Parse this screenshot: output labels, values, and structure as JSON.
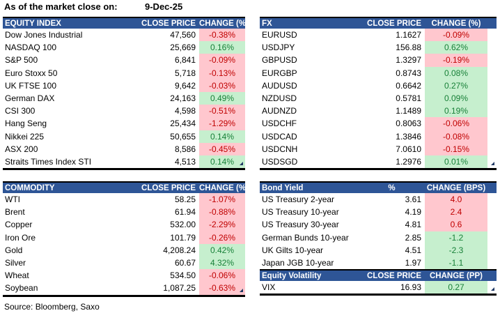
{
  "page": {
    "as_of_label": "As of the market close on:",
    "date": "9-Dec-25",
    "source": "Source: Bloomberg, Saxo"
  },
  "colors": {
    "header_bg": "#2E5596",
    "header_text": "#FFFFFF",
    "negative_bg": "#FFC7CE",
    "negative_text": "#C00000",
    "positive_bg": "#C6EFCE",
    "positive_text": "#188038",
    "corner_marker": "#1F3864"
  },
  "tables": {
    "equity_index": {
      "headers": [
        "EQUITY INDEX",
        "CLOSE PRICE",
        "CHANGE (%)"
      ],
      "rows": [
        {
          "name": "Dow Jones Industrial",
          "close": "47,560",
          "change": "-0.38%",
          "tone": "red"
        },
        {
          "name": "NASDAQ 100",
          "close": "25,669",
          "change": "0.16%",
          "tone": "green"
        },
        {
          "name": "S&P 500",
          "close": "6,841",
          "change": "-0.09%",
          "tone": "red"
        },
        {
          "name": "Euro Stoxx 50",
          "close": "5,718",
          "change": "-0.13%",
          "tone": "red"
        },
        {
          "name": "UK FTSE 100",
          "close": "9,642",
          "change": "-0.03%",
          "tone": "red"
        },
        {
          "name": "German DAX",
          "close": "24,163",
          "change": "0.49%",
          "tone": "green"
        },
        {
          "name": "CSI 300",
          "close": "4,598",
          "change": "-0.51%",
          "tone": "red"
        },
        {
          "name": "Hang Seng",
          "close": "25,434",
          "change": "-1.29%",
          "tone": "red"
        },
        {
          "name": "Nikkei 225",
          "close": "50,655",
          "change": "0.14%",
          "tone": "green"
        },
        {
          "name": "ASX 200",
          "close": "8,586",
          "change": "-0.45%",
          "tone": "red"
        },
        {
          "name": "Straits Times Index STI",
          "close": "4,513",
          "change": "0.14%",
          "tone": "green"
        }
      ]
    },
    "fx": {
      "headers": [
        "FX",
        "CLOSE PRICE",
        "CHANGE (%)"
      ],
      "rows": [
        {
          "name": "EURUSD",
          "close": "1.1627",
          "change": "-0.09%",
          "tone": "red"
        },
        {
          "name": "USDJPY",
          "close": "156.88",
          "change": "0.62%",
          "tone": "green"
        },
        {
          "name": "GBPUSD",
          "close": "1.3297",
          "change": "-0.19%",
          "tone": "red"
        },
        {
          "name": "EURGBP",
          "close": "0.8743",
          "change": "0.08%",
          "tone": "green"
        },
        {
          "name": "AUDUSD",
          "close": "0.6642",
          "change": "0.27%",
          "tone": "green"
        },
        {
          "name": "NZDUSD",
          "close": "0.5781",
          "change": "0.09%",
          "tone": "green"
        },
        {
          "name": "AUDNZD",
          "close": "1.1489",
          "change": "0.19%",
          "tone": "green"
        },
        {
          "name": "USDCHF",
          "close": "0.8063",
          "change": "-0.06%",
          "tone": "red"
        },
        {
          "name": "USDCAD",
          "close": "1.3846",
          "change": "-0.08%",
          "tone": "red"
        },
        {
          "name": "USDCNH",
          "close": "7.0610",
          "change": "-0.15%",
          "tone": "red"
        },
        {
          "name": "USDSGD",
          "close": "1.2976",
          "change": "0.01%",
          "tone": "green"
        }
      ]
    },
    "commodity": {
      "headers": [
        "COMMODITY",
        "CLOSE PRICE",
        "CHANGE (%)"
      ],
      "rows": [
        {
          "name": "WTI",
          "close": "58.25",
          "change": "-1.07%",
          "tone": "red"
        },
        {
          "name": "Brent",
          "close": "61.94",
          "change": "-0.88%",
          "tone": "red"
        },
        {
          "name": "Copper",
          "close": "532.00",
          "change": "-2.29%",
          "tone": "red"
        },
        {
          "name": "Iron Ore",
          "close": "101.79",
          "change": "-0.26%",
          "tone": "red"
        },
        {
          "name": "Gold",
          "close": "4,208.24",
          "change": "0.42%",
          "tone": "green"
        },
        {
          "name": "Silver",
          "close": "60.67",
          "change": "4.32%",
          "tone": "green"
        },
        {
          "name": "Wheat",
          "close": "534.50",
          "change": "-0.06%",
          "tone": "red"
        },
        {
          "name": "Soybean",
          "close": "1,087.25",
          "change": "-0.63%",
          "tone": "red"
        }
      ]
    },
    "bond_yield": {
      "headers": [
        "Bond Yield",
        "%",
        "CHANGE (BPS)"
      ],
      "rows": [
        {
          "name": "US Treasury 2-year",
          "close": "3.61",
          "change": "4.0",
          "tone": "red"
        },
        {
          "name": "US Treasury 10-year",
          "close": "4.19",
          "change": "2.4",
          "tone": "red"
        },
        {
          "name": "US Treasury 30-year",
          "close": "4.81",
          "change": "0.6",
          "tone": "red"
        },
        {
          "name": "German Bunds 10-year",
          "close": "2.85",
          "change": "-1.2",
          "tone": "green"
        },
        {
          "name": "UK Gilts 10-year",
          "close": "4.51",
          "change": "-2.3",
          "tone": "green"
        },
        {
          "name": "Japan JGB 10-year",
          "close": "1.97",
          "change": "-1.1",
          "tone": "green"
        }
      ]
    },
    "equity_volatility": {
      "headers": [
        "Equity Volatility",
        "CLOSE PRICE",
        "CHANGE (PP)"
      ],
      "rows": [
        {
          "name": "VIX",
          "close": "16.93",
          "change": "0.27",
          "tone": "green"
        }
      ]
    }
  }
}
